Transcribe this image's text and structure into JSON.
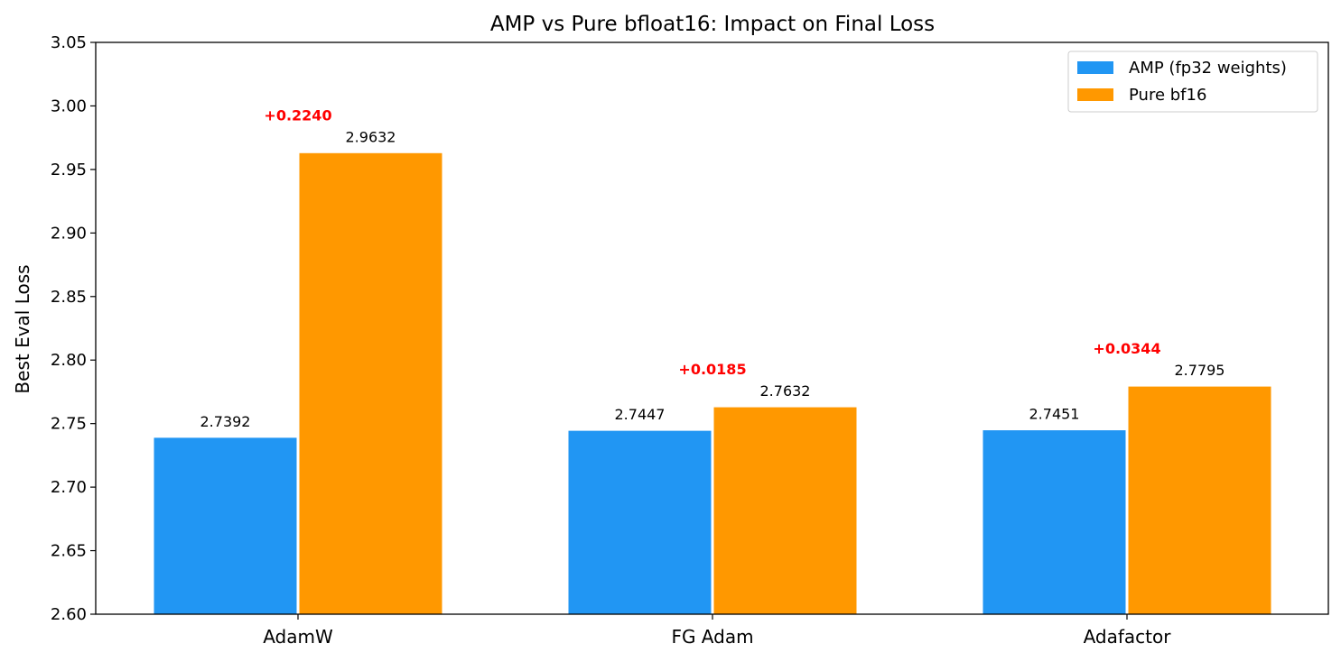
{
  "chart_data": {
    "type": "bar",
    "title": "AMP vs Pure bfloat16: Impact on Final Loss",
    "xlabel": "",
    "ylabel": "Best Eval Loss",
    "categories": [
      "AdamW",
      "FG Adam",
      "Adafactor"
    ],
    "series": [
      {
        "name": "AMP (fp32 weights)",
        "values": [
          2.7392,
          2.7447,
          2.7451
        ],
        "color": "#2196F3"
      },
      {
        "name": "Pure bf16",
        "values": [
          2.9632,
          2.7632,
          2.7795
        ],
        "color": "#FF9800"
      }
    ],
    "value_labels": {
      "amp": [
        "2.7392",
        "2.7447",
        "2.7451"
      ],
      "bf16": [
        "2.9632",
        "2.7632",
        "2.7795"
      ]
    },
    "differences": [
      "+0.2240",
      "+0.0185",
      "+0.0344"
    ],
    "difference_color": "#FF0000",
    "ylim": [
      2.6,
      3.05
    ],
    "yticks": [
      "2.60",
      "2.65",
      "2.70",
      "2.75",
      "2.80",
      "2.85",
      "2.90",
      "2.95",
      "3.00",
      "3.05"
    ],
    "grid": false,
    "legend_position": "top-right"
  }
}
